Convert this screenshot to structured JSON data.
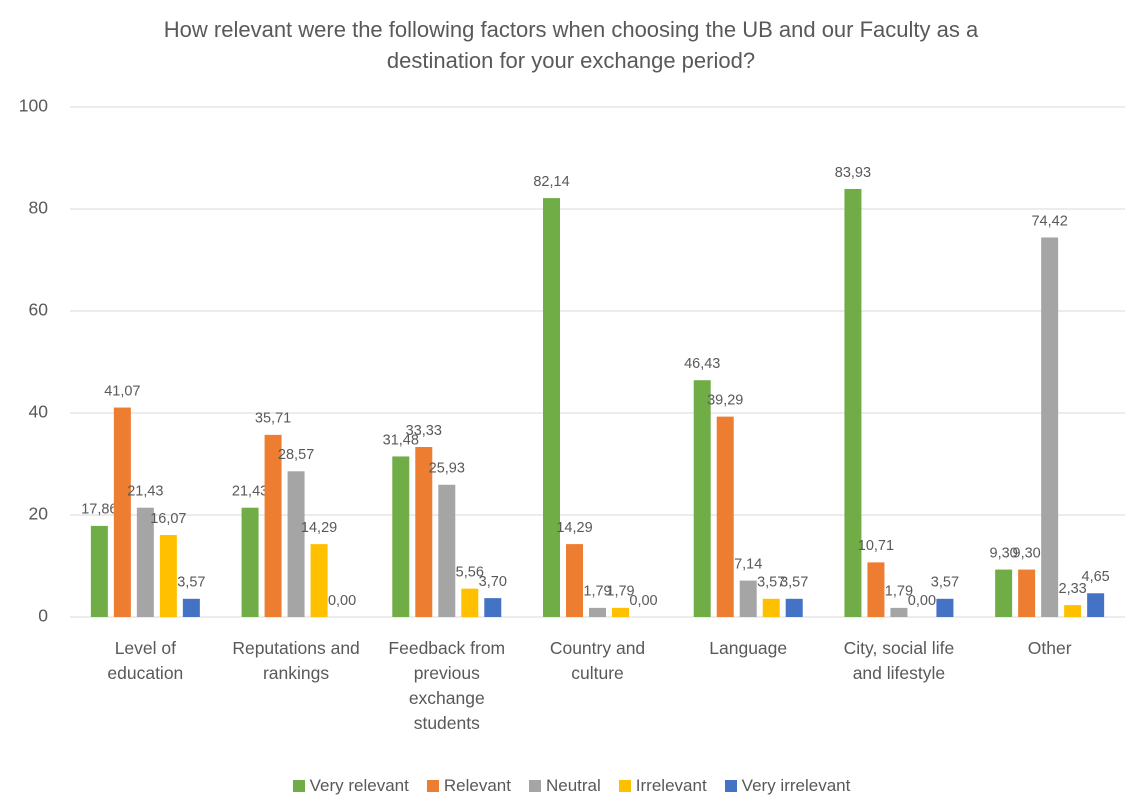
{
  "chart_data": {
    "type": "bar",
    "title": "How relevant were the following factors when choosing the UB and our Faculty as a destination for your exchange period?",
    "categories": [
      "Level of education",
      "Reputations and rankings",
      "Feedback from previous exchange students",
      "Country and culture",
      "Language",
      "City, social life and lifestyle",
      "Other"
    ],
    "series": [
      {
        "name": "Very relevant",
        "color": "#70ad47",
        "values": [
          17.86,
          21.43,
          31.48,
          82.14,
          46.43,
          83.93,
          9.3
        ],
        "value_labels": [
          "17,86",
          "21,43",
          "31,48",
          "82,14",
          "46,43",
          "83,93",
          "9,30"
        ]
      },
      {
        "name": "Relevant",
        "color": "#ed7d31",
        "values": [
          41.07,
          35.71,
          33.33,
          14.29,
          39.29,
          10.71,
          9.3
        ],
        "value_labels": [
          "41,07",
          "35,71",
          "33,33",
          "14,29",
          "39,29",
          "10,71",
          "9,30"
        ]
      },
      {
        "name": "Neutral",
        "color": "#a5a5a5",
        "values": [
          21.43,
          28.57,
          25.93,
          1.79,
          7.14,
          1.79,
          74.42
        ],
        "value_labels": [
          "21,43",
          "28,57",
          "25,93",
          "1,79",
          "7,14",
          "1,79",
          "74,42"
        ]
      },
      {
        "name": "Irrelevant",
        "color": "#ffc000",
        "values": [
          16.07,
          14.29,
          5.56,
          1.79,
          3.57,
          0.0,
          2.33
        ],
        "value_labels": [
          "16,07",
          "14,29",
          "5,56",
          "1,79",
          "3,57",
          "0,00",
          "2,33"
        ]
      },
      {
        "name": "Very irrelevant",
        "color": "#4472c4",
        "values": [
          3.57,
          0.0,
          3.7,
          0.0,
          3.57,
          3.57,
          4.65
        ],
        "value_labels": [
          "3,57",
          "0,00",
          "3,70",
          "0,00",
          "3,57",
          "3,57",
          "4,65"
        ]
      }
    ],
    "ylim": [
      0,
      100
    ],
    "yticks": [
      0,
      20,
      40,
      60,
      80,
      100
    ],
    "grid": true,
    "legend": "bottom"
  }
}
